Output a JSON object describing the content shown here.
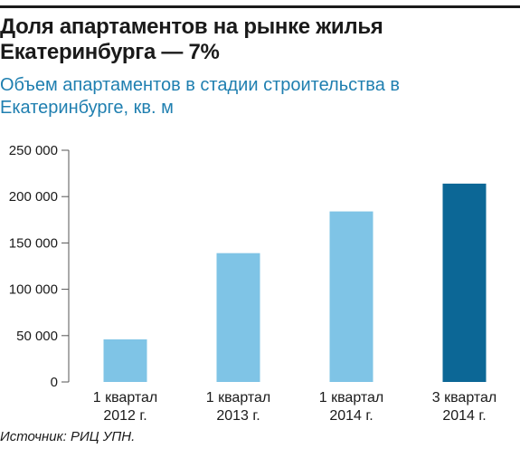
{
  "title": "Доля апартаментов на рынке жилья Екатеринбурга — 7%",
  "subtitle": "Объем апартаментов в стадии строительства в Екатеринбурге, кв. м",
  "source": "Источник: РИЦ УПН.",
  "colors": {
    "bar": "#7fc4e6",
    "bar_highlight": "#0c6796",
    "axis": "#555555",
    "subtitle": "#1f7fb0"
  },
  "chart_data": {
    "type": "bar",
    "categories": [
      [
        "1 квартал",
        "2012 г."
      ],
      [
        "1 квартал",
        "2013 г."
      ],
      [
        "1 квартал",
        "2014 г."
      ],
      [
        "3 квартал",
        "2014 г."
      ]
    ],
    "values": [
      46000,
      139000,
      184000,
      214000
    ],
    "highlight_index": 3,
    "ylim": [
      0,
      250000
    ],
    "yticks": [
      0,
      50000,
      100000,
      150000,
      200000,
      250000
    ],
    "ytick_labels": [
      "0",
      "50 000",
      "100 000",
      "150 000",
      "200 000",
      "250 000"
    ],
    "grid": false,
    "legend": "none"
  }
}
